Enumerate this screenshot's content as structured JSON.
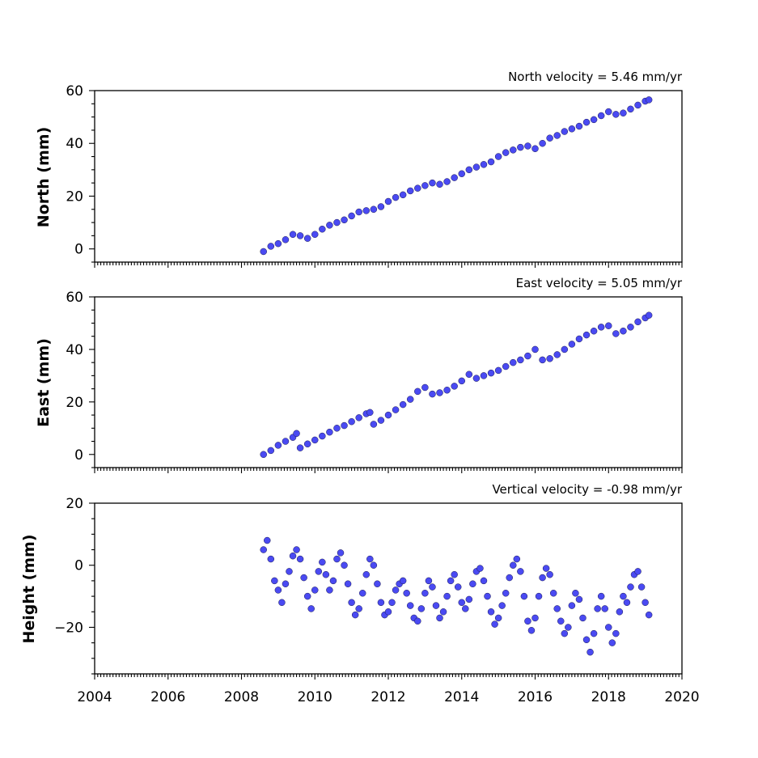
{
  "chart_data": [
    {
      "type": "scatter",
      "title": "",
      "annotation": "North velocity = 5.46 mm/yr",
      "xlabel": "",
      "ylabel": "North (mm)",
      "xlim": [
        2004,
        2020
      ],
      "ylim": [
        -5,
        60
      ],
      "yticks": [
        0,
        20,
        40,
        60
      ],
      "xticks": [
        2004,
        2006,
        2008,
        2010,
        2012,
        2014,
        2016,
        2018,
        2020
      ],
      "show_xtick_labels": false,
      "point_color": "#4a4af2",
      "edge_color": "#1a1a50",
      "grid": false,
      "series": [
        {
          "x": [
            2008.6,
            2008.8,
            2009.0,
            2009.2,
            2009.4,
            2009.6,
            2009.8,
            2010.0,
            2010.2,
            2010.4,
            2010.6,
            2010.8,
            2011.0,
            2011.2,
            2011.4,
            2011.6,
            2011.8,
            2012.0,
            2012.2,
            2012.4,
            2012.6,
            2012.8,
            2013.0,
            2013.2,
            2013.4,
            2013.6,
            2013.8,
            2014.0,
            2014.2,
            2014.4,
            2014.6,
            2014.8,
            2015.0,
            2015.2,
            2015.4,
            2015.6,
            2015.8,
            2016.0,
            2016.2,
            2016.4,
            2016.6,
            2016.8,
            2017.0,
            2017.2,
            2017.4,
            2017.6,
            2017.8,
            2018.0,
            2018.2,
            2018.4,
            2018.6,
            2018.8,
            2019.0,
            2019.1
          ],
          "y": [
            -1.0,
            1.0,
            2.0,
            3.5,
            5.5,
            5.0,
            4.0,
            5.5,
            7.5,
            9.0,
            10.0,
            11.0,
            12.5,
            14.0,
            14.5,
            15.0,
            16.0,
            18.0,
            19.5,
            20.5,
            22.0,
            23.0,
            24.0,
            25.0,
            24.5,
            25.5,
            27.0,
            28.5,
            30.0,
            31.0,
            32.0,
            33.0,
            35.0,
            36.5,
            37.5,
            38.5,
            39.0,
            38.0,
            40.0,
            42.0,
            43.0,
            44.5,
            45.5,
            46.5,
            48.0,
            49.0,
            50.5,
            52.0,
            51.0,
            51.5,
            53.0,
            54.5,
            56.0,
            56.5
          ]
        }
      ]
    },
    {
      "type": "scatter",
      "title": "",
      "annotation": "East velocity = 5.05 mm/yr",
      "xlabel": "",
      "ylabel": "East (mm)",
      "xlim": [
        2004,
        2020
      ],
      "ylim": [
        -5,
        60
      ],
      "yticks": [
        0,
        20,
        40,
        60
      ],
      "xticks": [
        2004,
        2006,
        2008,
        2010,
        2012,
        2014,
        2016,
        2018,
        2020
      ],
      "show_xtick_labels": false,
      "point_color": "#4a4af2",
      "edge_color": "#1a1a50",
      "grid": false,
      "series": [
        {
          "x": [
            2008.6,
            2008.8,
            2009.0,
            2009.2,
            2009.4,
            2009.5,
            2009.6,
            2009.8,
            2010.0,
            2010.2,
            2010.4,
            2010.6,
            2010.8,
            2011.0,
            2011.2,
            2011.4,
            2011.5,
            2011.6,
            2011.8,
            2012.0,
            2012.2,
            2012.4,
            2012.6,
            2012.8,
            2013.0,
            2013.2,
            2013.4,
            2013.6,
            2013.8,
            2014.0,
            2014.2,
            2014.4,
            2014.6,
            2014.8,
            2015.0,
            2015.2,
            2015.4,
            2015.6,
            2015.8,
            2016.0,
            2016.2,
            2016.4,
            2016.6,
            2016.8,
            2017.0,
            2017.2,
            2017.4,
            2017.6,
            2017.8,
            2018.0,
            2018.2,
            2018.4,
            2018.6,
            2018.8,
            2019.0,
            2019.1
          ],
          "y": [
            0.0,
            1.5,
            3.5,
            5.0,
            6.5,
            8.0,
            2.5,
            4.0,
            5.5,
            7.0,
            8.5,
            10.0,
            11.0,
            12.5,
            14.0,
            15.5,
            16.0,
            11.5,
            13.0,
            15.0,
            17.0,
            19.0,
            21.0,
            24.0,
            25.5,
            23.0,
            23.5,
            24.5,
            26.0,
            28.0,
            30.5,
            29.0,
            30.0,
            31.0,
            32.0,
            33.5,
            35.0,
            36.0,
            37.5,
            40.0,
            36.0,
            36.5,
            38.0,
            40.0,
            42.0,
            44.0,
            45.5,
            47.0,
            48.5,
            49.0,
            46.0,
            47.0,
            48.5,
            50.5,
            52.0,
            53.0
          ]
        }
      ]
    },
    {
      "type": "scatter",
      "title": "",
      "annotation": "Vertical velocity = -0.98 mm/yr",
      "xlabel": "",
      "ylabel": "Height (mm)",
      "xlim": [
        2004,
        2020
      ],
      "ylim": [
        -35,
        20
      ],
      "yticks": [
        -20,
        0,
        20
      ],
      "xticks": [
        2004,
        2006,
        2008,
        2010,
        2012,
        2014,
        2016,
        2018,
        2020
      ],
      "show_xtick_labels": true,
      "point_color": "#4a4af2",
      "edge_color": "#1a1a50",
      "grid": false,
      "series": [
        {
          "x": [
            2008.6,
            2008.7,
            2008.8,
            2008.9,
            2009.0,
            2009.1,
            2009.2,
            2009.3,
            2009.4,
            2009.5,
            2009.6,
            2009.7,
            2009.8,
            2009.9,
            2010.0,
            2010.1,
            2010.2,
            2010.3,
            2010.4,
            2010.5,
            2010.6,
            2010.7,
            2010.8,
            2010.9,
            2011.0,
            2011.1,
            2011.2,
            2011.3,
            2011.4,
            2011.5,
            2011.6,
            2011.7,
            2011.8,
            2011.9,
            2012.0,
            2012.1,
            2012.2,
            2012.3,
            2012.4,
            2012.5,
            2012.6,
            2012.7,
            2012.8,
            2012.9,
            2013.0,
            2013.1,
            2013.2,
            2013.3,
            2013.4,
            2013.5,
            2013.6,
            2013.7,
            2013.8,
            2013.9,
            2014.0,
            2014.1,
            2014.2,
            2014.3,
            2014.4,
            2014.5,
            2014.6,
            2014.7,
            2014.8,
            2014.9,
            2015.0,
            2015.1,
            2015.2,
            2015.3,
            2015.4,
            2015.5,
            2015.6,
            2015.7,
            2015.8,
            2015.9,
            2016.0,
            2016.1,
            2016.2,
            2016.3,
            2016.4,
            2016.5,
            2016.6,
            2016.7,
            2016.8,
            2016.9,
            2017.0,
            2017.1,
            2017.2,
            2017.3,
            2017.4,
            2017.5,
            2017.6,
            2017.7,
            2017.8,
            2017.9,
            2018.0,
            2018.1,
            2018.2,
            2018.3,
            2018.4,
            2018.5,
            2018.6,
            2018.7,
            2018.8,
            2018.9,
            2019.0,
            2019.1
          ],
          "y": [
            5.0,
            8.0,
            2.0,
            -5.0,
            -8.0,
            -12.0,
            -6.0,
            -2.0,
            3.0,
            5.0,
            2.0,
            -4.0,
            -10.0,
            -14.0,
            -8.0,
            -2.0,
            1.0,
            -3.0,
            -8.0,
            -5.0,
            2.0,
            4.0,
            0.0,
            -6.0,
            -12.0,
            -16.0,
            -14.0,
            -9.0,
            -3.0,
            2.0,
            0.0,
            -6.0,
            -12.0,
            -16.0,
            -15.0,
            -12.0,
            -8.0,
            -6.0,
            -5.0,
            -9.0,
            -13.0,
            -17.0,
            -18.0,
            -14.0,
            -9.0,
            -5.0,
            -7.0,
            -13.0,
            -17.0,
            -15.0,
            -10.0,
            -5.0,
            -3.0,
            -7.0,
            -12.0,
            -14.0,
            -11.0,
            -6.0,
            -2.0,
            -1.0,
            -5.0,
            -10.0,
            -15.0,
            -19.0,
            -17.0,
            -13.0,
            -9.0,
            -4.0,
            0.0,
            2.0,
            -2.0,
            -10.0,
            -18.0,
            -21.0,
            -17.0,
            -10.0,
            -4.0,
            -1.0,
            -3.0,
            -9.0,
            -14.0,
            -18.0,
            -22.0,
            -20.0,
            -13.0,
            -9.0,
            -11.0,
            -17.0,
            -24.0,
            -28.0,
            -22.0,
            -14.0,
            -10.0,
            -14.0,
            -20.0,
            -25.0,
            -22.0,
            -15.0,
            -10.0,
            -12.0,
            -7.0,
            -3.0,
            -2.0,
            -7.0,
            -12.0,
            -16.0
          ]
        }
      ]
    }
  ]
}
